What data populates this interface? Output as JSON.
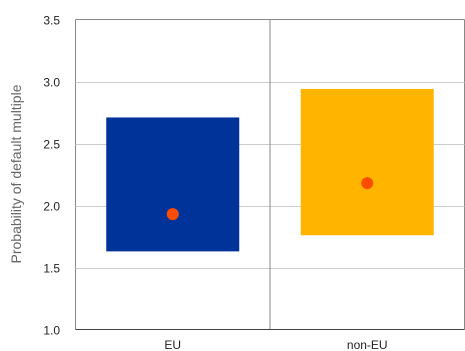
{
  "chart_data": {
    "type": "box",
    "ylabel": "Probability of default multiple",
    "xlabel": "",
    "ylim": [
      1.0,
      3.5
    ],
    "yticks": [
      "1.0",
      "1.5",
      "2.0",
      "2.5",
      "3.0",
      "3.5"
    ],
    "categories": [
      "EU",
      "non-EU"
    ],
    "boxes": [
      {
        "category": "EU",
        "low": 1.63,
        "high": 2.71,
        "point": 1.93,
        "color": "#003399"
      },
      {
        "category": "non-EU",
        "low": 1.76,
        "high": 2.94,
        "point": 2.18,
        "color": "#FFB400"
      }
    ],
    "point_color": "#FF4D00",
    "grid": true
  }
}
